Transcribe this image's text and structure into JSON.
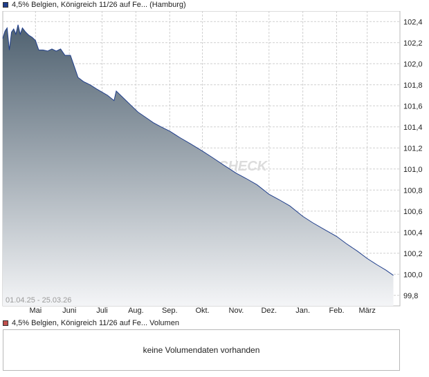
{
  "legend": {
    "price_label": "4,5% Belgien, Königreich 11/26 auf Fe... (Hamburg)",
    "price_color": "#1f3e8c",
    "volume_label": "4,5% Belgien, Königreich 11/26 auf Fe... Volumen",
    "volume_color": "#c0504d"
  },
  "watermark": "CHECK",
  "volume_panel": {
    "message": "keine Volumendaten vorhanden"
  },
  "chart_data": {
    "type": "area",
    "date_range_label": "01.04.25 - 25.03.26",
    "ylim": [
      99.7,
      102.5
    ],
    "y_ticks": [
      "99,8",
      "100,0",
      "100,2",
      "100,4",
      "100,6",
      "100,8",
      "101,0",
      "101,2",
      "101,4",
      "101,6",
      "101,8",
      "102,0",
      "102,2",
      "102,4"
    ],
    "y_tick_values": [
      99.8,
      100.0,
      100.2,
      100.4,
      100.6,
      100.8,
      101.0,
      101.2,
      101.4,
      101.6,
      101.8,
      102.0,
      102.2,
      102.4
    ],
    "x_ticks": [
      "Mai",
      "Juni",
      "Juli",
      "Aug.",
      "Sep.",
      "Okt.",
      "Nov.",
      "Dez.",
      "Jan.",
      "Feb.",
      "März"
    ],
    "x_tick_dates": [
      "2025-05-01",
      "2025-06-01",
      "2025-07-01",
      "2025-08-01",
      "2025-09-01",
      "2025-10-01",
      "2025-11-01",
      "2025-12-01",
      "2026-01-01",
      "2026-02-01",
      "2026-03-01"
    ],
    "grid": true,
    "series": [
      {
        "color": "#1f3e8c",
        "fill_top": "#4f6170",
        "fill_bottom": "#f4f5f7",
        "points": [
          [
            "2025-04-01",
            102.24
          ],
          [
            "2025-04-03",
            102.31
          ],
          [
            "2025-04-05",
            102.34
          ],
          [
            "2025-04-07",
            102.13
          ],
          [
            "2025-04-09",
            102.3
          ],
          [
            "2025-04-11",
            102.33
          ],
          [
            "2025-04-13",
            102.28
          ],
          [
            "2025-04-15",
            102.37
          ],
          [
            "2025-04-17",
            102.28
          ],
          [
            "2025-04-19",
            102.34
          ],
          [
            "2025-04-22",
            102.3
          ],
          [
            "2025-04-25",
            102.27
          ],
          [
            "2025-04-28",
            102.25
          ],
          [
            "2025-05-01",
            102.22
          ],
          [
            "2025-05-04",
            102.13
          ],
          [
            "2025-05-08",
            102.13
          ],
          [
            "2025-05-12",
            102.12
          ],
          [
            "2025-05-16",
            102.14
          ],
          [
            "2025-05-20",
            102.12
          ],
          [
            "2025-05-24",
            102.14
          ],
          [
            "2025-05-28",
            102.08
          ],
          [
            "2025-06-02",
            102.08
          ],
          [
            "2025-06-06",
            101.96
          ],
          [
            "2025-06-09",
            101.87
          ],
          [
            "2025-06-14",
            101.83
          ],
          [
            "2025-06-20",
            101.8
          ],
          [
            "2025-06-26",
            101.76
          ],
          [
            "2025-07-01",
            101.73
          ],
          [
            "2025-07-06",
            101.7
          ],
          [
            "2025-07-12",
            101.65
          ],
          [
            "2025-07-14",
            101.74
          ],
          [
            "2025-07-18",
            101.7
          ],
          [
            "2025-07-22",
            101.66
          ],
          [
            "2025-07-28",
            101.6
          ],
          [
            "2025-08-03",
            101.54
          ],
          [
            "2025-08-10",
            101.49
          ],
          [
            "2025-08-17",
            101.44
          ],
          [
            "2025-08-24",
            101.4
          ],
          [
            "2025-09-01",
            101.36
          ],
          [
            "2025-09-10",
            101.3
          ],
          [
            "2025-09-20",
            101.24
          ],
          [
            "2025-10-01",
            101.17
          ],
          [
            "2025-10-10",
            101.11
          ],
          [
            "2025-10-20",
            101.04
          ],
          [
            "2025-11-01",
            100.96
          ],
          [
            "2025-11-10",
            100.91
          ],
          [
            "2025-11-20",
            100.85
          ],
          [
            "2025-12-01",
            100.76
          ],
          [
            "2025-12-10",
            100.71
          ],
          [
            "2025-12-20",
            100.65
          ],
          [
            "2026-01-01",
            100.55
          ],
          [
            "2026-01-10",
            100.49
          ],
          [
            "2026-01-20",
            100.43
          ],
          [
            "2026-02-01",
            100.36
          ],
          [
            "2026-02-10",
            100.29
          ],
          [
            "2026-02-20",
            100.22
          ],
          [
            "2026-03-01",
            100.15
          ],
          [
            "2026-03-10",
            100.09
          ],
          [
            "2026-03-18",
            100.04
          ],
          [
            "2026-03-25",
            99.99
          ]
        ]
      }
    ]
  }
}
